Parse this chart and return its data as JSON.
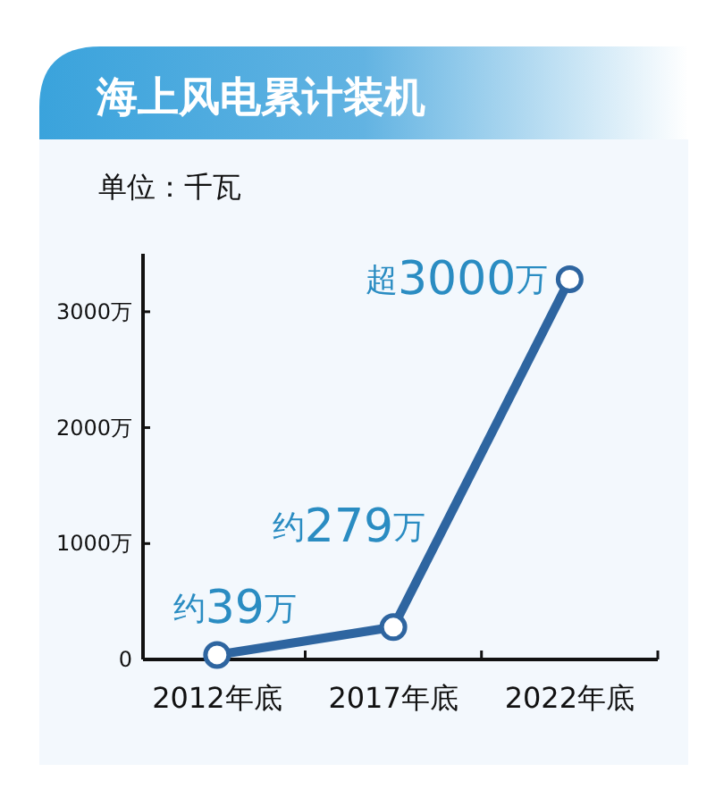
{
  "chart_data": {
    "type": "line",
    "title": "海上风电累计装机",
    "subtitle": "单位：千瓦",
    "categories": [
      "2012年底",
      "2017年底",
      "2022年底"
    ],
    "values": [
      39,
      279,
      3280
    ],
    "value_labels": [
      "约39万",
      "约279万",
      "超3000万"
    ],
    "color": "#2e65a0",
    "marker": "circle",
    "line_style": "solid",
    "ylim": [
      0,
      3500
    ],
    "yticks": [
      0,
      {
        "value": 1000,
        "label": "1000万"
      },
      {
        "value": 2000,
        "label": "2000万"
      },
      {
        "value": 3000,
        "label": "3000万"
      }
    ]
  }
}
